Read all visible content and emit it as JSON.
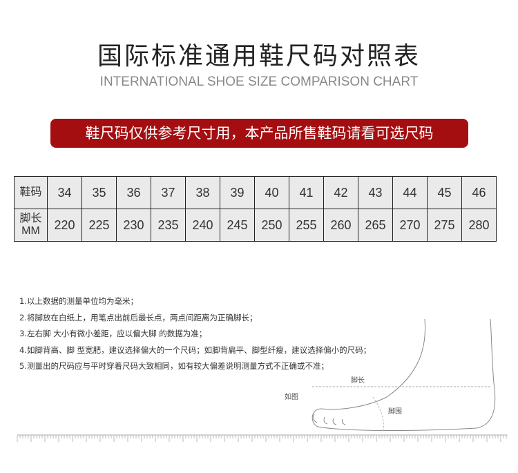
{
  "title": "国际标准通用鞋尺码对照表",
  "subtitle": "INTERNATIONAL SHOE SIZE COMPARISON CHART",
  "banner": "鞋尺码仅供参考尺寸用，本产品所售鞋码请看可选尺码",
  "table": {
    "row1_header": "鞋码",
    "row2_header_line1": "脚长",
    "row2_header_line2": "MM",
    "sizes": [
      "34",
      "35",
      "36",
      "37",
      "38",
      "39",
      "40",
      "41",
      "42",
      "43",
      "44",
      "45",
      "46"
    ],
    "lengths": [
      "220",
      "225",
      "230",
      "235",
      "240",
      "245",
      "250",
      "255",
      "260",
      "265",
      "270",
      "275",
      "280"
    ]
  },
  "notes": [
    "1.以上数据的测量单位均为毫米；",
    "2.将脚放在白纸上，用笔点出前后最长点，两点间距离为正确脚长；",
    "3.左右脚 大小有微小差距，应以偏大脚 的数据为准；",
    "4.如脚背高、脚 型宽肥，建议选择偏大的一个尺码；如脚背扁平、脚型纤瘦，建议选择偏小的尺码；",
    "5.测量出的尺码应与平时穿着尺码大致相同，如有较大偏差说明测量方式不正确或不准；"
  ],
  "diagram": {
    "foot_length": "脚长",
    "as_shown": "如图",
    "foot_girth": "脚围"
  },
  "colors": {
    "banner": "#a50e11",
    "table_bg": "#eaeaea"
  }
}
